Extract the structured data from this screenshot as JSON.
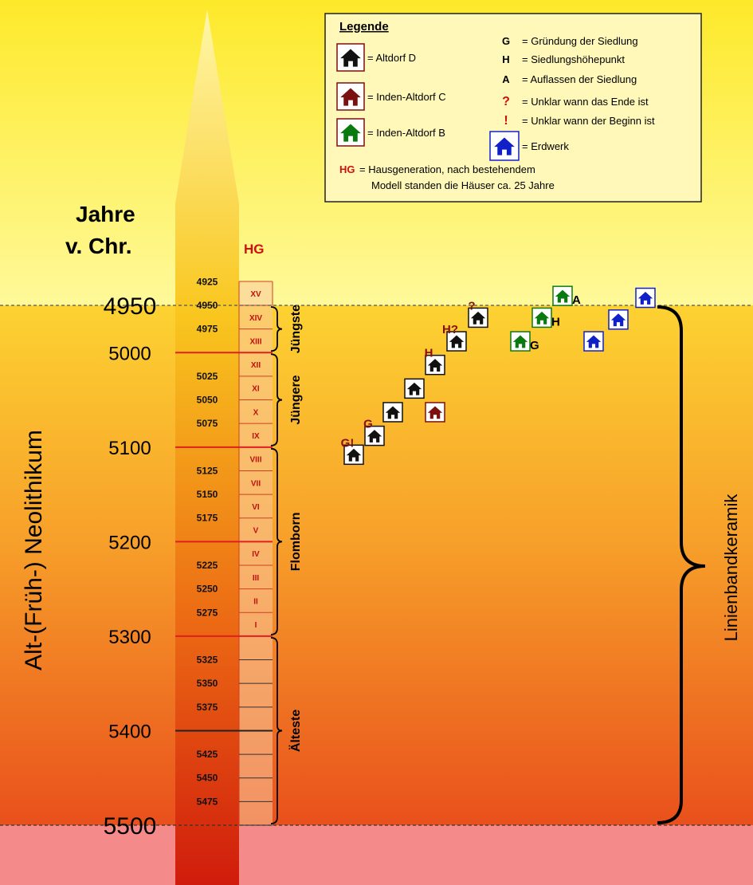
{
  "axis": {
    "header_line1": "Jahre",
    "header_line2": "v. Chr.",
    "major_ticks": [
      "4950",
      "5000",
      "5100",
      "5200",
      "5300",
      "5400",
      "5500"
    ],
    "minor_ticks": [
      "4925",
      "4950",
      "4975",
      "5025",
      "5050",
      "5075",
      "5125",
      "5150",
      "5175",
      "5225",
      "5250",
      "5275",
      "5325",
      "5350",
      "5375",
      "5425",
      "5450",
      "5475"
    ],
    "hg_label": "HG",
    "hg_generations": [
      "XV",
      "XIV",
      "XIII",
      "XII",
      "XI",
      "X",
      "IX",
      "VIII",
      "VII",
      "VI",
      "V",
      "IV",
      "III",
      "II",
      "I"
    ]
  },
  "era_label": "Alt-(Früh-) Neolithikum",
  "culture_label": "Linienbandkeramik",
  "phases": [
    {
      "name": "Jüngste",
      "start": 5000,
      "end": 4950
    },
    {
      "name": "Jüngere",
      "start": 5100,
      "end": 5000
    },
    {
      "name": "Flomborn",
      "start": 5300,
      "end": 5100
    },
    {
      "name": "Älteste",
      "start": 5500,
      "end": 5300
    }
  ],
  "legend": {
    "title": "Legende",
    "houses": [
      {
        "label": "= Altdorf  D",
        "color": "#111111"
      },
      {
        "label": "= Inden-Altdorf C",
        "color": "#7a1010"
      },
      {
        "label": "= Inden-Altdorf B",
        "color": "#0a7a10"
      },
      {
        "label": "= Erdwerk",
        "color": "#1020c8"
      }
    ],
    "codes": [
      {
        "code": "G",
        "text": "= Gründung der Siedlung"
      },
      {
        "code": "H",
        "text": "= Siedlungshöhepunkt"
      },
      {
        "code": "A",
        "text": "= Auflassen der Siedlung"
      },
      {
        "code": "?",
        "text": "= Unklar wann das Ende ist"
      },
      {
        "code": "!",
        "text": "= Unklar wann der Beginn ist"
      }
    ],
    "hg_code": "HG",
    "hg_line1": "= Hausgeneration, nach bestehendem",
    "hg_line2": "Modell standen die Häuser ca. 25 Jahre"
  },
  "settlements": [
    {
      "site": "Altdorf D",
      "year": 5108,
      "marker": "G!"
    },
    {
      "site": "Altdorf D",
      "year": 5088,
      "marker": "G"
    },
    {
      "site": "Altdorf D",
      "year": 5063,
      "marker": ""
    },
    {
      "site": "Altdorf D",
      "year": 5038,
      "marker": ""
    },
    {
      "site": "Altdorf D",
      "year": 5013,
      "marker": "H"
    },
    {
      "site": "Altdorf D",
      "year": 4988,
      "marker": "H?"
    },
    {
      "site": "Altdorf D",
      "year": 4963,
      "marker": "?"
    },
    {
      "site": "Inden-Altdorf C",
      "year": 5063,
      "marker": ""
    },
    {
      "site": "Inden-Altdorf B",
      "year": 4988,
      "marker": "G"
    },
    {
      "site": "Inden-Altdorf B",
      "year": 4963,
      "marker": "H"
    },
    {
      "site": "Inden-Altdorf B",
      "year": 4940,
      "marker": "A"
    },
    {
      "site": "Erdwerk",
      "year": 4988,
      "marker": ""
    },
    {
      "site": "Erdwerk",
      "year": 4965,
      "marker": ""
    },
    {
      "site": "Erdwerk",
      "year": 4942,
      "marker": ""
    }
  ]
}
